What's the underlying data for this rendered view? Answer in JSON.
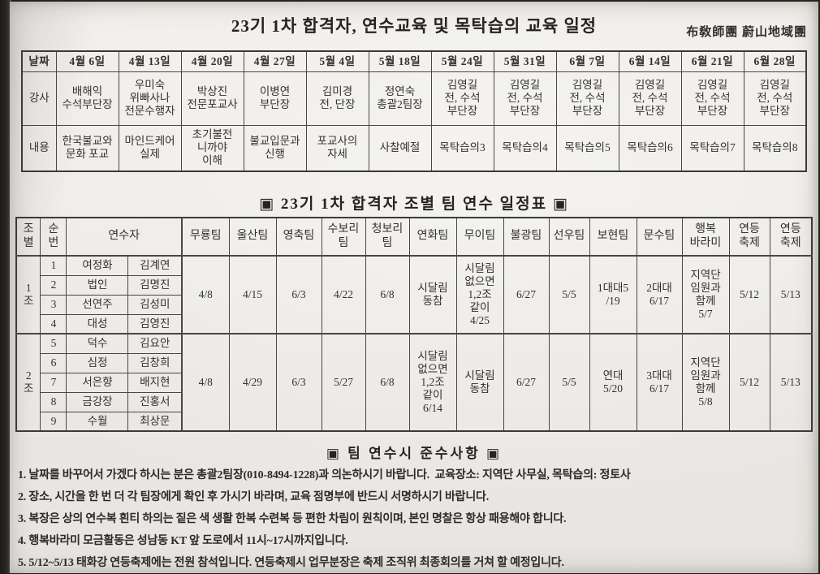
{
  "header": {
    "title": "23기 1차 합격자, 연수교육 및 목탁습의 교육 일정",
    "org": "布敎師團 蔚山地域團"
  },
  "schedule_table": {
    "row_labels": {
      "date": "날짜",
      "lecturer": "강사",
      "content": "내용"
    },
    "columns": [
      {
        "date": "4월 6일",
        "lecturer": "배해익\n수석부단장",
        "content": "한국불교와\n문화 포교"
      },
      {
        "date": "4월 13일",
        "lecturer": "우미숙\n위빠사나\n전문수행자",
        "content": "마인드케어\n실제"
      },
      {
        "date": "4월 20일",
        "lecturer": "박상진\n전문포교사",
        "content": "초기불전\n니까야\n이해"
      },
      {
        "date": "4월 27일",
        "lecturer": "이병연\n부단장",
        "content": "불교입문과\n신행"
      },
      {
        "date": "5월 4일",
        "lecturer": "김미경\n전, 단장",
        "content": "포교사의\n자세"
      },
      {
        "date": "5월 18일",
        "lecturer": "정연숙\n총괄2팀장",
        "content": "사찰예절"
      },
      {
        "date": "5월 24일",
        "lecturer": "김영길\n전, 수석\n부단장",
        "content": "목탁습의3"
      },
      {
        "date": "5월 31일",
        "lecturer": "김영길\n전, 수석\n부단장",
        "content": "목탁습의4"
      },
      {
        "date": "6월 7일",
        "lecturer": "김영길\n전, 수석\n부단장",
        "content": "목탁습의5"
      },
      {
        "date": "6월 14일",
        "lecturer": "김영길\n전, 수석\n부단장",
        "content": "목탁습의6"
      },
      {
        "date": "6월 21일",
        "lecturer": "김영길\n전, 수석\n부단장",
        "content": "목탁습의7"
      },
      {
        "date": "6월 28일",
        "lecturer": "김영길\n전, 수석\n부단장",
        "content": "목탁습의8"
      }
    ]
  },
  "team_table": {
    "title": "▣ 23기 1차 합격자 조별 팀 연수 일정표 ▣",
    "headers": [
      "조\n별",
      "순\n번",
      "연수자",
      "무룡팀",
      "울산팀",
      "영축팀",
      "수보리\n팀",
      "청보리\n팀",
      "연화팀",
      "무이팀",
      "불광팀",
      "선우팀",
      "보현팀",
      "문수팀",
      "행복\n바라미",
      "연등\n축제",
      "연등\n축제"
    ],
    "groups": [
      {
        "label": "1\n조",
        "members": [
          [
            "1",
            "여정화",
            "김계연"
          ],
          [
            "2",
            "법인",
            "김명진"
          ],
          [
            "3",
            "선연주",
            "김성미"
          ],
          [
            "4",
            "대성",
            "김영진"
          ]
        ],
        "team_dates": [
          "4/8",
          "4/15",
          "6/3",
          "4/22",
          "6/8",
          "시달림\n동참",
          "시달림\n없으면\n1,2조\n같이\n4/25",
          "6/27",
          "5/5",
          "1대대5\n/19",
          "2대대\n6/17",
          "지역단\n임원과\n함께\n5/7",
          "5/12",
          "5/13"
        ]
      },
      {
        "label": "2\n조",
        "members": [
          [
            "5",
            "덕수",
            "김요안"
          ],
          [
            "6",
            "심정",
            "김창희"
          ],
          [
            "7",
            "서은향",
            "배지현"
          ],
          [
            "8",
            "금강장",
            "진홍서"
          ],
          [
            "9",
            "수월",
            "최상문"
          ]
        ],
        "team_dates": [
          "4/8",
          "4/29",
          "6/3",
          "5/27",
          "6/8",
          "시달림\n없으면\n1,2조\n같이\n6/14",
          "시달림\n동참",
          "6/27",
          "5/5",
          "연대\n5/20",
          "3대대\n6/17",
          "지역단\n임원과\n함께\n5/8",
          "5/12",
          "5/13"
        ]
      }
    ]
  },
  "notes": {
    "title": "▣ 팀 연수시  준수사항 ▣",
    "items": [
      "1. 날짜를 바꾸어서 가겠다 하시는 분은 총괄2팀장(010-8494-1228)과 의논하시기 바랍니다.  교육장소: 지역단 사무실, 목탁습의: 정토사",
      "2. 장소, 시간을 한 번 더 각 팀장에게 확인 후 가시기 바라며, 교육 점명부에 반드시 서명하시기 바랍니다.",
      "3. 복장은 상의 연수복 흰티 하의는 짙은 색 생활 한복 수련복 등 편한 차림이 원칙이며, 본인 명찰은 항상 패용해야 합니다.",
      "4. 행복바라미 모금활동은 성남동 KT 앞 도로에서 11시~17시까지입니다.",
      "5. 5/12~5/13 태화강 연등축제에는 전원 참석입니다. 연등축제시 업무분장은 축제 조직위 최종회의를 거쳐 할 예정입니다."
    ]
  },
  "colors": {
    "paper": "#edebe7",
    "ink": "#2e2c29",
    "border": "#4a4742",
    "photo_edge": "#23221f"
  }
}
